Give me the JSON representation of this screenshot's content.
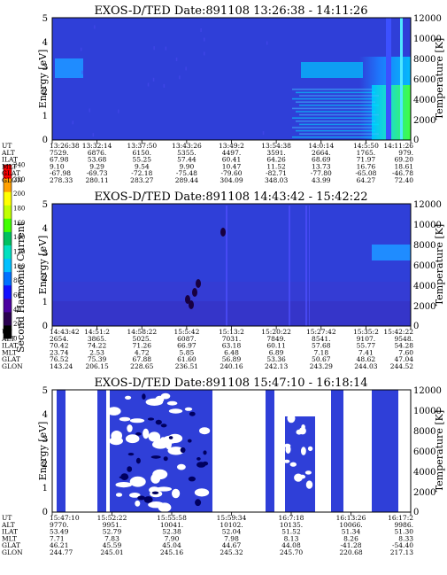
{
  "figure": {
    "colorbar": {
      "label": "Second Harmonic Current",
      "ticks": [
        "0",
        "20",
        "40",
        "60",
        "80",
        "100",
        "120",
        "140",
        "160",
        "180",
        "200",
        "220",
        "240"
      ],
      "colors": [
        "#000000",
        "#2a0050",
        "#4b00a0",
        "#1010ff",
        "#0070ff",
        "#00c0ff",
        "#00e0c0",
        "#00c060",
        "#40ff00",
        "#c0ff00",
        "#ffff00",
        "#ffa000",
        "#ff0000"
      ]
    },
    "eph_labels": [
      "UT",
      "ALT",
      "ILAT",
      "MLT",
      "GLAT",
      "GLON"
    ],
    "y_left_label": "Energy [eV]",
    "y_right_label": "Temperature [K]",
    "y_left_ticks": [
      "5",
      "4",
      "3",
      "2",
      "1",
      "0"
    ],
    "y_right_ticks": [
      "12000",
      "10000",
      "8000",
      "6000",
      "4000",
      "2000",
      "0"
    ]
  },
  "panels": [
    {
      "title": "EXOS-D/TED   Date:891108   13:26:38 - 14:11:26",
      "eph_columns": [
        [
          "13:26:38",
          "7529.",
          "67.98",
          "9.10",
          "-67.98",
          "278.33"
        ],
        [
          "13:32:14",
          "6876.",
          "53.68",
          "9.29",
          "-69.73",
          "280.11"
        ],
        [
          "13:37:50",
          "6150.",
          "55.25",
          "9.54",
          "-72.18",
          "283.27"
        ],
        [
          "13:43:26",
          "5355.",
          "57.44",
          "9.90",
          "-75.48",
          "289.44"
        ],
        [
          "13:49:2",
          "4497.",
          "60.41",
          "10.47",
          "-79.60",
          "304.09"
        ],
        [
          "13:54:38",
          "3591.",
          "64.26",
          "11.52",
          "-82.71",
          "348.03"
        ],
        [
          "14:0:14",
          "2664.",
          "68.69",
          "13.73",
          "-77.80",
          "43.99"
        ],
        [
          "14:5:50",
          "1765.",
          "71.97",
          "16.76",
          "-65.08",
          "64.27"
        ],
        [
          "14:11:26",
          "979.",
          "69.20",
          "18.61",
          "-46.78",
          "72.40"
        ]
      ]
    },
    {
      "title": "EXOS-D/TED   Date:891108   14:43:42 - 15:42:22",
      "eph_columns": [
        [
          "14:43:42",
          "2654.",
          "70.42",
          "23.74",
          "76.52",
          "143.24"
        ],
        [
          "14:51:2",
          "3865.",
          "74.22",
          "2.53",
          "75.39",
          "206.15"
        ],
        [
          "14:58:22",
          "5025.",
          "71.26",
          "4.72",
          "67.88",
          "228.65"
        ],
        [
          "15:5:42",
          "6087.",
          "66.97",
          "5.85",
          "61.60",
          "236.51"
        ],
        [
          "15:13:2",
          "7031.",
          "63.18",
          "6.48",
          "56.89",
          "240.16"
        ],
        [
          "15:20:22",
          "7849.",
          "60.11",
          "6.89",
          "53.36",
          "242.13"
        ],
        [
          "15:27:42",
          "8541.",
          "57.68",
          "7.18",
          "50.67",
          "243.29"
        ],
        [
          "15:35:2",
          "9107.",
          "55.77",
          "7.41",
          "48.62",
          "244.03"
        ],
        [
          "15:42:22",
          "9548.",
          "54.28",
          "7.60",
          "47.04",
          "244.52"
        ]
      ]
    },
    {
      "title": "EXOS-D/TED   Date:891108   15:47:10 - 16:18:14",
      "eph_columns": [
        [
          "15:47:10",
          "9770.",
          "53.49",
          "7.71",
          "46.21",
          "244.77"
        ],
        [
          "15:52:22",
          "9951.",
          "52.79",
          "7.83",
          "45.59",
          "245.01"
        ],
        [
          "15:55:58",
          "10041.",
          "52.38",
          "7.90",
          "45.04",
          "245.16"
        ],
        [
          "15:59:34",
          "10102.",
          "52.04",
          "7.98",
          "44.67",
          "245.32"
        ],
        [
          "16:7:18",
          "10135.",
          "51.52",
          "8.13",
          "44.08",
          "245.70"
        ],
        [
          "16:13:26",
          "10066.",
          "51.34",
          "8.26",
          "-41.28",
          "220.68"
        ],
        [
          "16:17:2",
          "9986.",
          "51.30",
          "8.33",
          "-54.40",
          "217.13"
        ]
      ]
    }
  ],
  "chart_data": [
    {
      "type": "heatmap",
      "title": "EXOS-D/TED   Date:891108   13:26:38 - 14:11:26",
      "ylabel": "Energy [eV]",
      "y2label": "Temperature [K]",
      "ylim": [
        0,
        5
      ],
      "y2lim": [
        0,
        12000
      ],
      "xlim": [
        "13:26:38",
        "14:11:26"
      ],
      "colorbar_label": "Second Harmonic Current",
      "colorbar_range": [
        0,
        240
      ]
    },
    {
      "type": "heatmap",
      "title": "EXOS-D/TED   Date:891108   14:43:42 - 15:42:22",
      "ylabel": "Energy [eV]",
      "y2label": "Temperature [K]",
      "ylim": [
        0,
        5
      ],
      "y2lim": [
        0,
        12000
      ],
      "xlim": [
        "14:43:42",
        "15:42:22"
      ],
      "colorbar_label": "Second Harmonic Current",
      "colorbar_range": [
        0,
        240
      ]
    },
    {
      "type": "heatmap",
      "title": "EXOS-D/TED   Date:891108   15:47:10 - 16:18:14",
      "ylabel": "Energy [eV]",
      "y2label": "Temperature [K]",
      "ylim": [
        0,
        5
      ],
      "y2lim": [
        0,
        12000
      ],
      "xlim": [
        "15:47:10",
        "16:18:14"
      ],
      "colorbar_label": "Second Harmonic Current",
      "colorbar_range": [
        0,
        240
      ]
    }
  ]
}
